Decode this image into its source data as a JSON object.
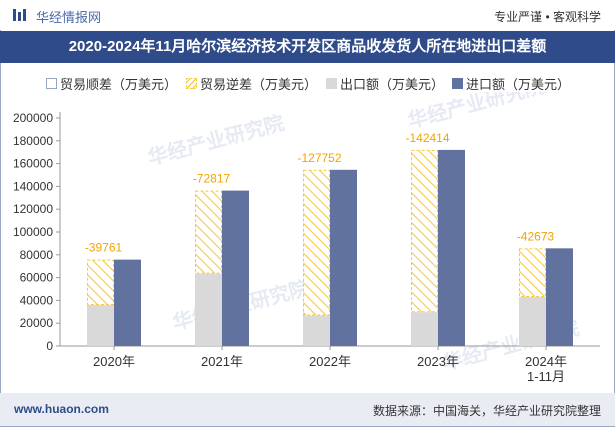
{
  "header": {
    "brand": "华经情报网",
    "slogan": "专业严谨 • 客观科学"
  },
  "colors": {
    "accent": "#2f4b8a",
    "trade_surplus": "#ffffff",
    "trade_deficit": "#f5c945",
    "export": "#d9d9d9",
    "import": "#61729e",
    "label": "#f0a500"
  },
  "watermark": "华经产业研究院",
  "footer": {
    "site": "www.huaon.com",
    "source": "数据来源：中国海关，华经产业研究院整理"
  },
  "chart_data": {
    "type": "bar",
    "title": "2020-2024年11月哈尔滨经济技术开发区商品收发货人所在地进出口差额",
    "categories": [
      "2020年",
      "2021年",
      "2022年",
      "2023年",
      "2024年\n1-11月"
    ],
    "legend": [
      "贸易顺差（万美元）",
      "贸易逆差（万美元）",
      "出口额（万美元）",
      "进口额（万美元）"
    ],
    "series": [
      {
        "name": "贸易顺差（万美元）",
        "values": [
          0,
          0,
          0,
          0,
          0
        ]
      },
      {
        "name": "贸易逆差（万美元）",
        "values": [
          -39761,
          -72817,
          -127752,
          -142414,
          -42673
        ]
      },
      {
        "name": "出口额（万美元）",
        "values": [
          36000,
          63500,
          26800,
          29600,
          43000
        ]
      },
      {
        "name": "进口额（万美元）",
        "values": [
          75761,
          136317,
          154552,
          172014,
          85673
        ]
      }
    ],
    "data_labels": [
      "-39761",
      "-72817",
      "-127752",
      "-142414",
      "-42673"
    ],
    "yticks": [
      0,
      20000,
      40000,
      60000,
      80000,
      100000,
      120000,
      140000,
      160000,
      180000,
      200000
    ],
    "ylim": [
      0,
      200000
    ],
    "xlabel": "",
    "ylabel": "",
    "grid": false
  }
}
